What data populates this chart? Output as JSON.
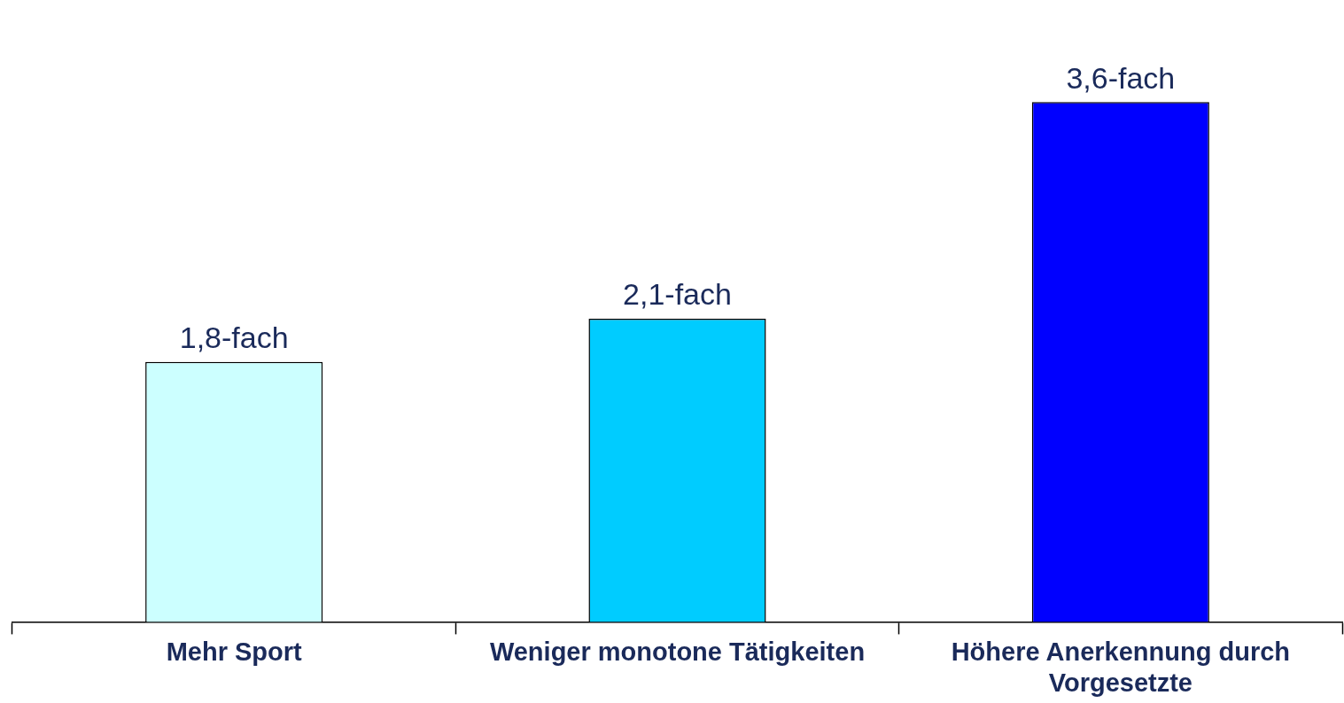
{
  "chart_data": {
    "type": "bar",
    "categories": [
      "Mehr Sport",
      "Weniger monotone Tätigkeiten",
      "Höhere Anerkennung durch Vorgesetzte"
    ],
    "values": [
      1.8,
      2.1,
      3.6
    ],
    "colors": [
      "#ccffff",
      "#00ccff",
      "#0000ff"
    ],
    "value_labels": [
      "1,8-fach",
      "2,1-fach",
      "3,6-fach"
    ]
  }
}
